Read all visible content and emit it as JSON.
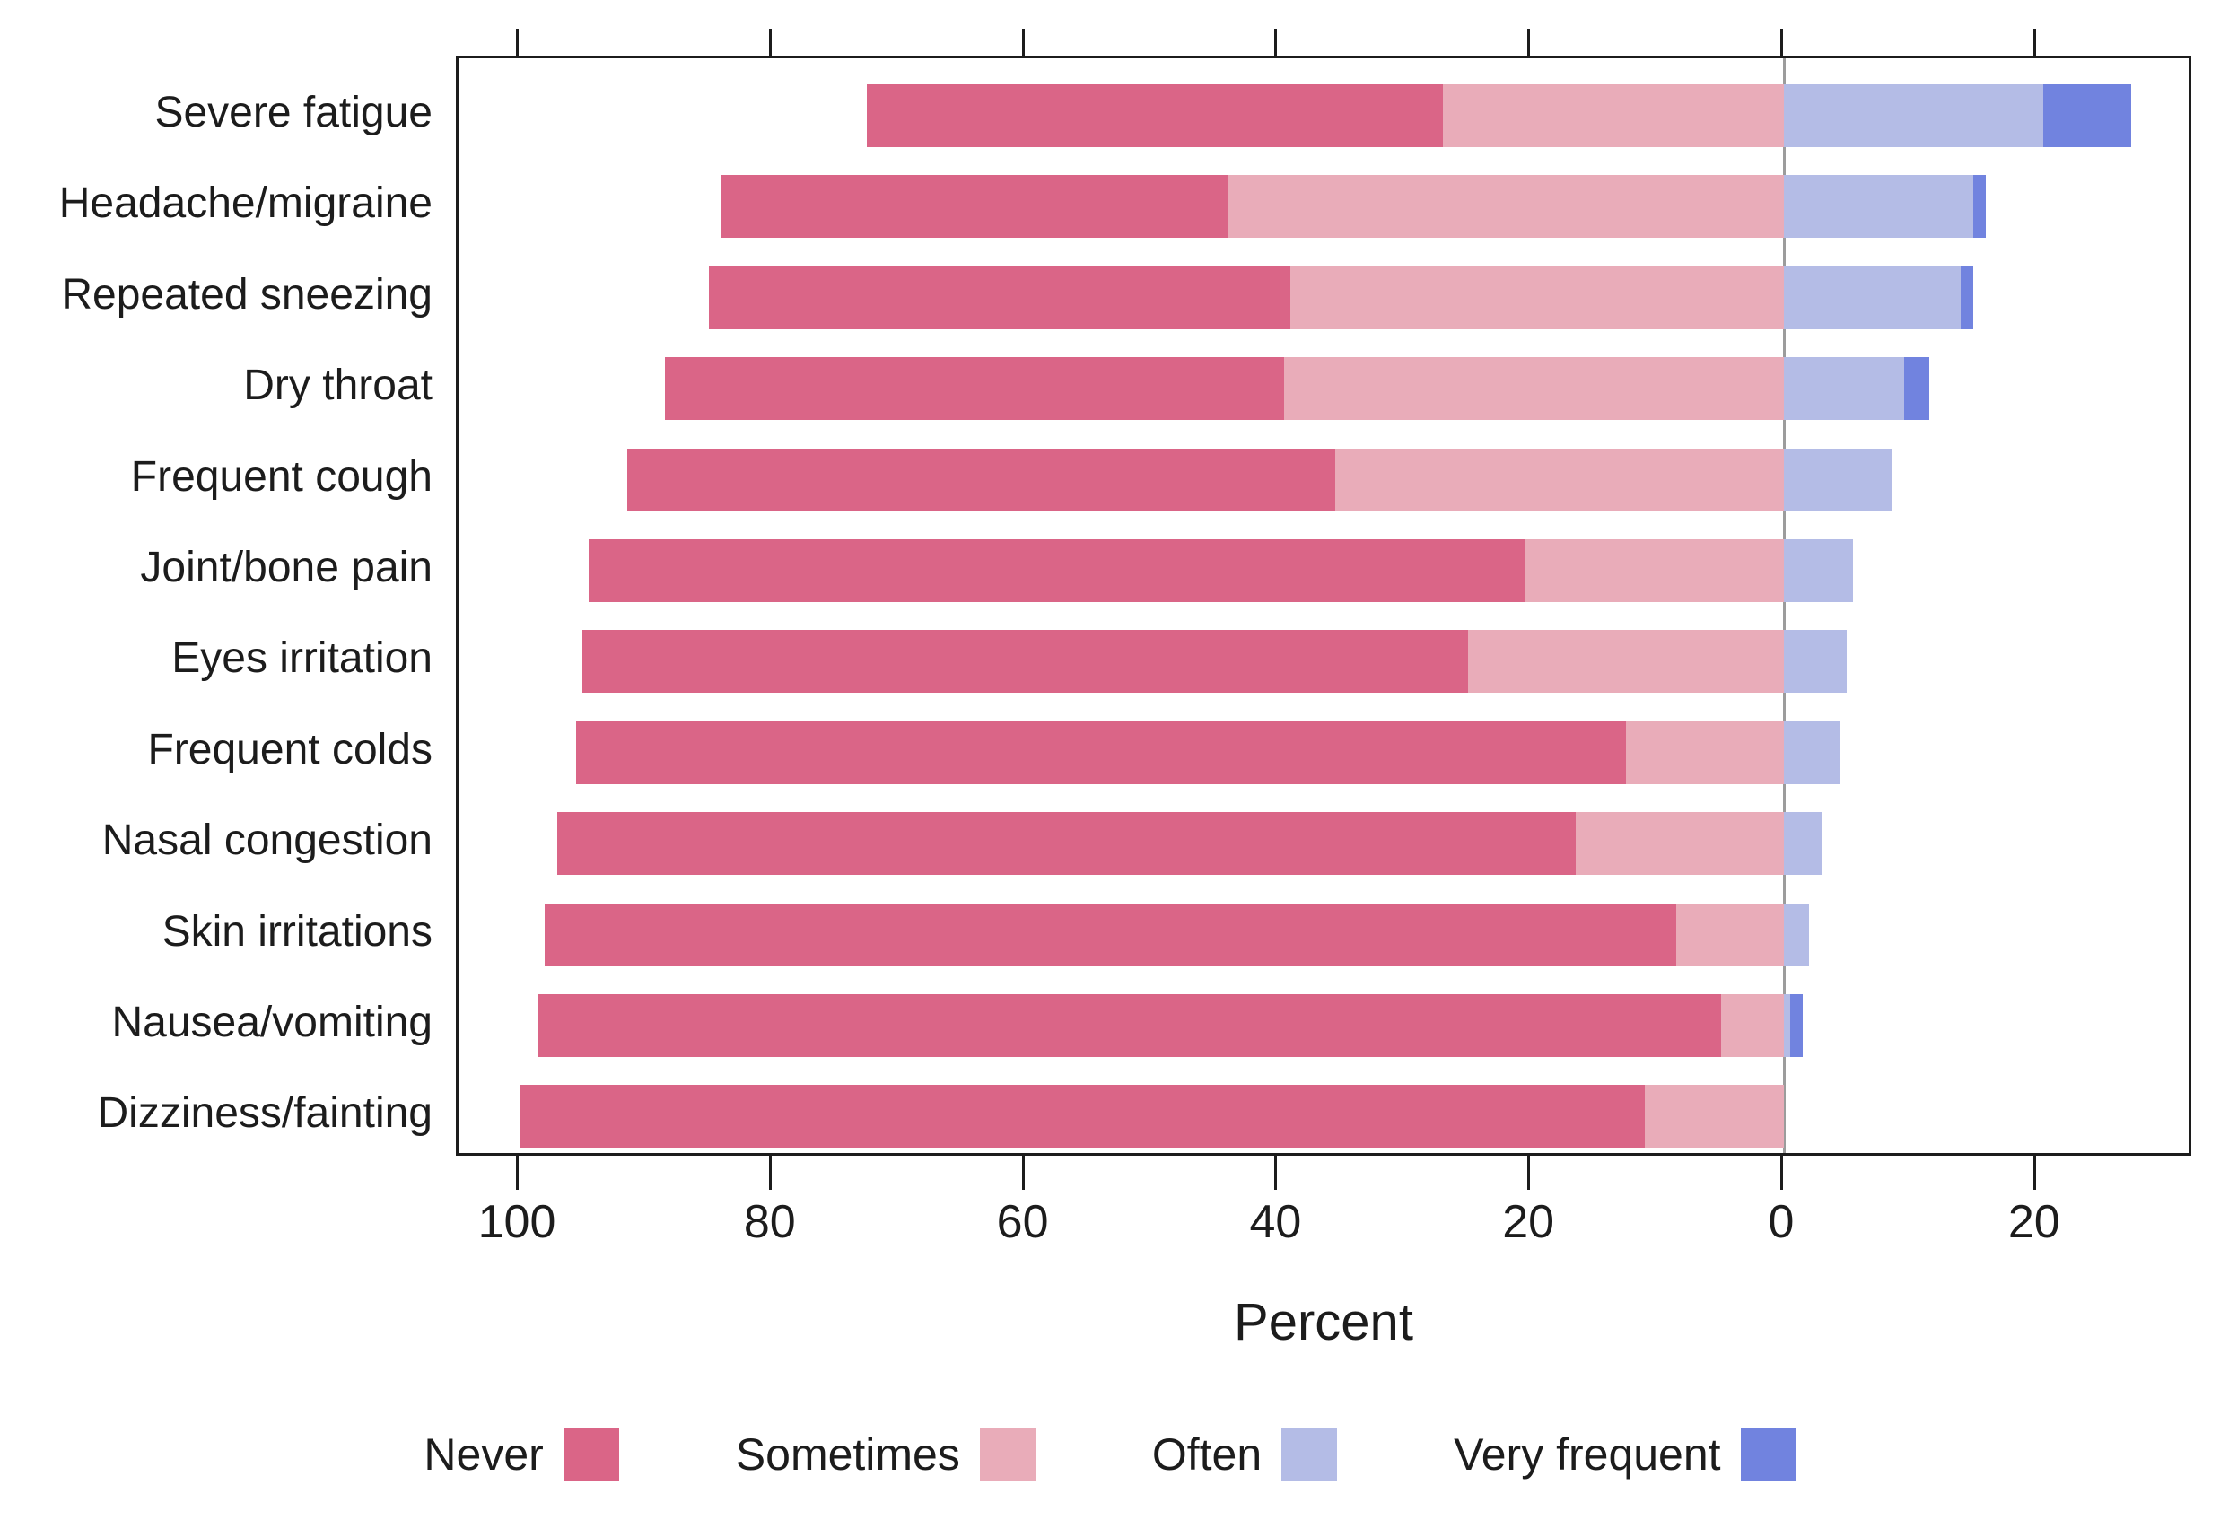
{
  "chart_data": {
    "type": "bar",
    "variant": "diverging-stacked-horizontal-likert",
    "title": "",
    "xlabel": "Percent",
    "ylabel": "",
    "categories": [
      "Severe fatigue",
      "Headache/migraine",
      "Repeated sneezing",
      "Dry throat",
      "Frequent cough",
      "Joint/bone pain",
      "Eyes irritation",
      "Frequent colds",
      "Nasal congestion",
      "Skin irritations",
      "Nausea/vomiting",
      "Dizziness/fainting"
    ],
    "series": [
      {
        "name": "Never",
        "side": "left",
        "color": "#da6587",
        "values": [
          45.5,
          40,
          46,
          49,
          56,
          74,
          70,
          83,
          80.5,
          89.5,
          93.5,
          89
        ]
      },
      {
        "name": "Sometimes",
        "side": "left",
        "color": "#e9acb9",
        "values": [
          27,
          44,
          39,
          39.5,
          35.5,
          20.5,
          25,
          12.5,
          16.5,
          8.5,
          5,
          11
        ]
      },
      {
        "name": "Often",
        "side": "right",
        "color": "#b4bce6",
        "values": [
          20.5,
          15,
          14,
          9.5,
          8.5,
          5.5,
          5,
          4.5,
          3,
          2,
          0.5,
          0
        ]
      },
      {
        "name": "Very frequent",
        "side": "right",
        "color": "#7183df",
        "values": [
          7,
          1,
          1,
          2,
          0,
          0,
          0,
          0,
          0,
          0,
          1,
          0
        ]
      }
    ],
    "axis": {
      "tick_values": [
        -100,
        -80,
        -60,
        -40,
        -20,
        0,
        20
      ],
      "tick_labels": [
        "100",
        "80",
        "60",
        "40",
        "20",
        "0",
        "20"
      ],
      "xlim": [
        -104.8,
        32.4
      ],
      "zero_line_color": "#9c9c9c",
      "grid": false,
      "note": "Never+Sometimes stacked left of 0; Often+Very frequent stacked right of 0; each row sums to 100%"
    },
    "legend": {
      "position": "bottom",
      "entries": [
        "Never",
        "Sometimes",
        "Often",
        "Very frequent"
      ]
    }
  }
}
